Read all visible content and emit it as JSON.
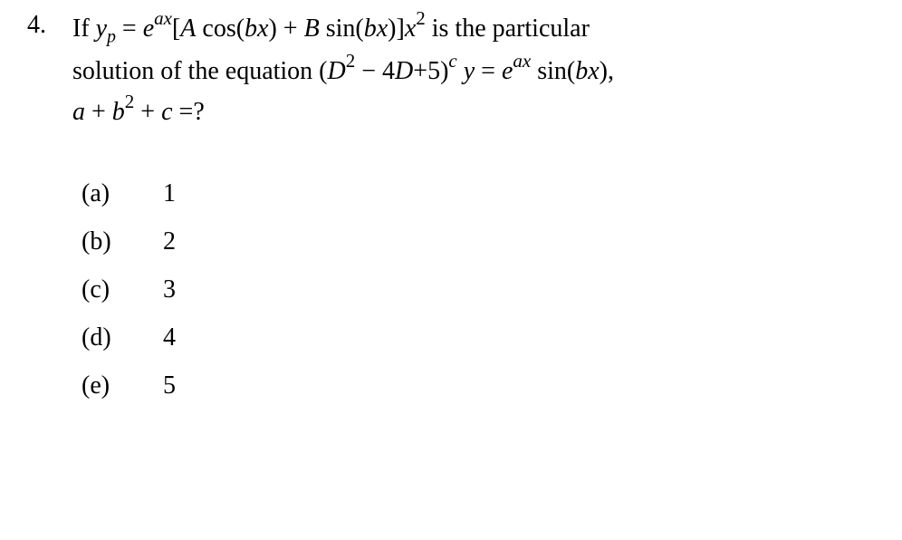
{
  "problem": {
    "number": "4.",
    "line1_prefix": "If ",
    "line1_yp": "y",
    "line1_p": "p",
    "line1_eq": " = ",
    "line1_e": "e",
    "line1_ax": "ax",
    "line1_bracket_open": "[",
    "line1_A": "A",
    "line1_cos": " cos(",
    "line1_bx1": "bx",
    "line1_close1": ") + ",
    "line1_B": "B",
    "line1_sin": " sin(",
    "line1_bx2": "bx",
    "line1_close2": ")]",
    "line1_x": "x",
    "line1_sq": "2",
    "line1_suffix": " is the particular",
    "line2_prefix": "solution of the equation (",
    "line2_D": "D",
    "line2_sq1": "2",
    "line2_minus": " − 4",
    "line2_D2": "D",
    "line2_plus5": "+5)",
    "line2_c": "c",
    "line2_y": " y",
    "line2_eq": " = ",
    "line2_e": "e",
    "line2_ax": "ax",
    "line2_sin": " sin(",
    "line2_bx": "bx",
    "line2_close": "),",
    "line3_a": "a",
    "line3_plus": " + ",
    "line3_b": "b",
    "line3_sq": "2",
    "line3_plusc": " + ",
    "line3_c": "c",
    "line3_eq": " =?"
  },
  "options": {
    "a": {
      "label": "(a)",
      "value": "1"
    },
    "b": {
      "label": "(b)",
      "value": "2"
    },
    "c": {
      "label": "(c)",
      "value": "3"
    },
    "d": {
      "label": "(d)",
      "value": "4"
    },
    "e": {
      "label": "(e)",
      "value": "5"
    }
  },
  "styling": {
    "background_color": "#ffffff",
    "text_color": "#000000",
    "font_family": "Times New Roman",
    "problem_fontsize": 28,
    "option_fontsize": 28,
    "line_height": 1.6,
    "option_line_height": 1.9
  }
}
